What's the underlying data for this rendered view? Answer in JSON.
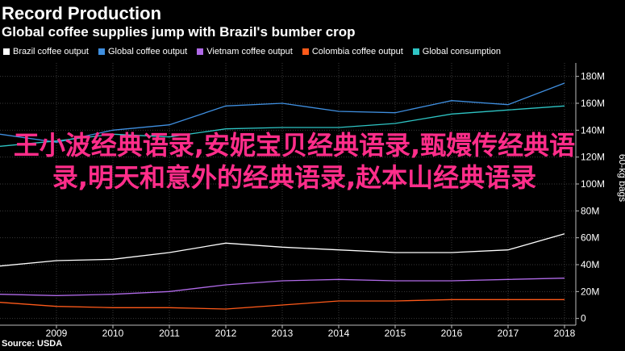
{
  "header": {
    "title": "Record Production",
    "subtitle": "Global coffee supplies jump with Brazil's bumber crop"
  },
  "overlay_text": "王小波经典语录,安妮宝贝经典语录,甄嬛传经典语录,明天和意外的经典语录,赵本山经典语录",
  "source": "Source: USDA",
  "chart_data": {
    "type": "line",
    "title": "Record Production",
    "subtitle": "Global coffee supplies jump with Brazil's bumber crop",
    "ylabel": "60-kg bags",
    "xlabel": "",
    "x": [
      2008,
      2009,
      2010,
      2011,
      2012,
      2013,
      2014,
      2015,
      2016,
      2017,
      2018
    ],
    "x_ticks": [
      "2009",
      "2010",
      "2011",
      "2012",
      "2013",
      "2014",
      "2015",
      "2016",
      "2017",
      "2018"
    ],
    "xlim": [
      2008,
      2018.2
    ],
    "ylim": [
      -5,
      190
    ],
    "y_ticks": [
      0,
      20,
      40,
      60,
      80,
      100,
      120,
      140,
      160,
      180
    ],
    "y_tick_labels": [
      "0",
      "20M",
      "40M",
      "60M",
      "80M",
      "100M",
      "120M",
      "140M",
      "160M",
      "180M"
    ],
    "grid": true,
    "legend_position": "top-left",
    "series": [
      {
        "name": "Brazil coffee output",
        "color": "#ffffff",
        "values": [
          39,
          43,
          44,
          49,
          56,
          53,
          51,
          49,
          49,
          51,
          63
        ]
      },
      {
        "name": "Global coffee output",
        "color": "#3f8fe0",
        "values": [
          137,
          131,
          140,
          144,
          158,
          160,
          154,
          153,
          162,
          159,
          175
        ]
      },
      {
        "name": "Vietnam coffee output",
        "color": "#b06ae8",
        "values": [
          18,
          17,
          18,
          20,
          25,
          28,
          29,
          28,
          28,
          29,
          30
        ]
      },
      {
        "name": "Colombia coffee output",
        "color": "#ff5a1a",
        "values": [
          12,
          9,
          8,
          8,
          7,
          10,
          13,
          13,
          14,
          14,
          14
        ]
      },
      {
        "name": "Global consumption",
        "color": "#2ec4c4",
        "values": [
          128,
          132,
          137,
          135,
          141,
          142,
          142,
          145,
          152,
          155,
          158
        ]
      }
    ]
  }
}
